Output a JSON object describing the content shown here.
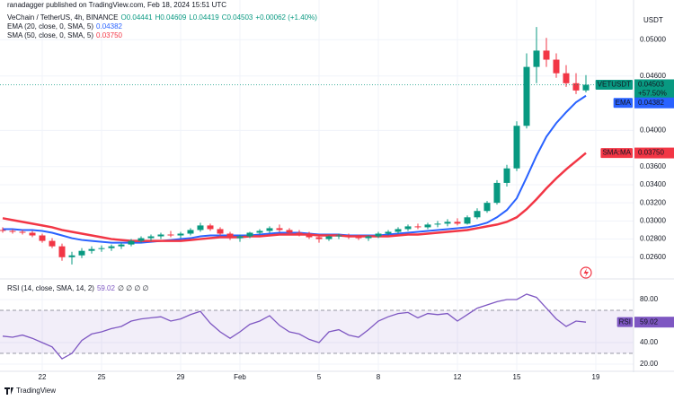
{
  "chart_data": {
    "type": "candlestick",
    "published": "ranadagger published on TradingView.com, Feb 18, 2024 15:51 UTC",
    "title": "VeChain / TetherUS, 4h, BINANCE",
    "ohlc_legend": [
      "O0.04441",
      "H0.04609",
      "L0.04419",
      "C0.04503",
      "+0.00062 (+1.40%)"
    ],
    "currency": "USDT",
    "brand": "TradingView",
    "up_color": "#089981",
    "down_color": "#f23645",
    "grid": true,
    "categories": [
      null,
      null,
      null,
      null,
      "22",
      null,
      null,
      null,
      null,
      null,
      "25",
      null,
      null,
      null,
      null,
      null,
      null,
      null,
      "29",
      null,
      null,
      null,
      null,
      null,
      "Feb",
      null,
      null,
      null,
      null,
      null,
      null,
      null,
      "5",
      null,
      null,
      null,
      null,
      null,
      "8",
      null,
      null,
      null,
      null,
      null,
      null,
      null,
      "12",
      null,
      null,
      null,
      null,
      null,
      "15",
      null,
      null,
      null,
      null,
      null,
      null,
      null,
      "19",
      null
    ],
    "open": [
      0.029,
      0.0289,
      0.0288,
      0.0287,
      0.0284,
      0.0278,
      0.0272,
      0.026,
      0.0262,
      0.0267,
      0.0269,
      0.027,
      0.0272,
      0.0274,
      0.0278,
      0.0281,
      0.0283,
      0.0285,
      0.0284,
      0.0286,
      0.029,
      0.0295,
      0.0291,
      0.0286,
      0.0281,
      0.0283,
      0.0287,
      0.0289,
      0.0292,
      0.029,
      0.0287,
      0.0285,
      0.0282,
      0.028,
      0.0283,
      0.0284,
      0.0282,
      0.0281,
      0.0283,
      0.0286,
      0.0288,
      0.0291,
      0.0294,
      0.0293,
      0.0296,
      0.0297,
      0.0299,
      0.0297,
      0.0304,
      0.0311,
      0.032,
      0.0342,
      0.0358,
      0.0405,
      0.047,
      0.0488,
      0.0478,
      0.0463,
      0.0452,
      0.04441,
      null,
      null
    ],
    "high": [
      0.0293,
      0.0291,
      0.029,
      0.0289,
      0.0286,
      0.0281,
      0.0275,
      0.0266,
      0.027,
      0.0272,
      0.0273,
      0.0274,
      0.0276,
      0.028,
      0.0283,
      0.0285,
      0.0287,
      0.0289,
      0.0288,
      0.0292,
      0.0298,
      0.0297,
      0.0293,
      0.0288,
      0.0285,
      0.0288,
      0.0291,
      0.0294,
      0.0296,
      0.0292,
      0.029,
      0.0288,
      0.0285,
      0.0284,
      0.0286,
      0.0286,
      0.0285,
      0.0284,
      0.0288,
      0.029,
      0.0293,
      0.0296,
      0.0297,
      0.0298,
      0.03,
      0.0302,
      0.0303,
      0.0306,
      0.0314,
      0.0322,
      0.0345,
      0.0362,
      0.041,
      0.0485,
      0.0514,
      0.0502,
      0.0485,
      0.0472,
      0.0463,
      0.04609,
      null,
      null
    ],
    "low": [
      0.0287,
      0.0286,
      0.0285,
      0.0282,
      0.0276,
      0.027,
      0.0256,
      0.0252,
      0.0259,
      0.0264,
      0.0266,
      0.0267,
      0.0269,
      0.0272,
      0.0276,
      0.0278,
      0.028,
      0.0282,
      0.0281,
      0.0284,
      0.0288,
      0.0289,
      0.0284,
      0.0279,
      0.0277,
      0.0281,
      0.0285,
      0.0287,
      0.0288,
      0.0285,
      0.0283,
      0.028,
      0.0276,
      0.0278,
      0.028,
      0.028,
      0.0279,
      0.0278,
      0.0281,
      0.0284,
      0.0286,
      0.0289,
      0.0291,
      0.0291,
      0.0293,
      0.0294,
      0.0295,
      0.0296,
      0.0302,
      0.0309,
      0.0318,
      0.0338,
      0.0355,
      0.0402,
      0.0452,
      0.047,
      0.0458,
      0.0448,
      0.044,
      0.04419,
      null,
      null
    ],
    "close": [
      0.0289,
      0.0288,
      0.0287,
      0.0284,
      0.0278,
      0.0272,
      0.026,
      0.0262,
      0.0267,
      0.0269,
      0.027,
      0.0272,
      0.0274,
      0.0278,
      0.0281,
      0.0283,
      0.0285,
      0.0284,
      0.0286,
      0.029,
      0.0295,
      0.0291,
      0.0286,
      0.0281,
      0.0283,
      0.0287,
      0.0289,
      0.0292,
      0.029,
      0.0287,
      0.0285,
      0.0282,
      0.028,
      0.0283,
      0.0284,
      0.0282,
      0.0281,
      0.0283,
      0.0286,
      0.0288,
      0.0291,
      0.0294,
      0.0293,
      0.0296,
      0.0297,
      0.0299,
      0.0297,
      0.0304,
      0.0311,
      0.032,
      0.0342,
      0.0358,
      0.0405,
      0.047,
      0.0488,
      0.0478,
      0.0463,
      0.0452,
      0.0444,
      0.04503,
      null,
      null
    ],
    "ylim": [
      0.0237,
      0.0529
    ],
    "yticks": [
      {
        "value": 0.05,
        "label": "0.05000"
      },
      {
        "value": 0.046,
        "label": "0.04600"
      },
      {
        "value": 0.04,
        "label": "0.04000"
      },
      {
        "value": 0.036,
        "label": "0.03600"
      },
      {
        "value": 0.034,
        "label": "0.03400"
      },
      {
        "value": 0.032,
        "label": "0.03200"
      },
      {
        "value": 0.03,
        "label": "0.03000"
      },
      {
        "value": 0.028,
        "label": "0.02800"
      },
      {
        "value": 0.026,
        "label": "0.02600"
      }
    ],
    "symbol": "VETUSDT",
    "last_price": {
      "value": 0.04503,
      "label": "0.04503"
    },
    "last_change": "+57.50%",
    "countdown": "08:09",
    "overlays": [
      {
        "name": "EMA (20, close, 0, SMA, 5)",
        "tag": "EMA",
        "color": "#2962ff",
        "last": {
          "value": 0.04382,
          "label": "0.04382"
        },
        "values": [
          0.0291,
          0.0291,
          0.029,
          0.029,
          0.0289,
          0.0287,
          0.0284,
          0.0281,
          0.0279,
          0.0278,
          0.0277,
          0.0276,
          0.0276,
          0.0276,
          0.0276,
          0.0277,
          0.0278,
          0.0279,
          0.028,
          0.0281,
          0.0283,
          0.0284,
          0.0284,
          0.0284,
          0.0284,
          0.0284,
          0.0285,
          0.0286,
          0.0287,
          0.0287,
          0.0287,
          0.0286,
          0.0285,
          0.0285,
          0.0285,
          0.0284,
          0.0284,
          0.0284,
          0.0284,
          0.0285,
          0.0286,
          0.0287,
          0.0288,
          0.0289,
          0.029,
          0.0291,
          0.0292,
          0.0293,
          0.0295,
          0.0298,
          0.0304,
          0.0312,
          0.0325,
          0.0348,
          0.0372,
          0.0393,
          0.0408,
          0.042,
          0.0431,
          0.04382,
          null,
          null
        ]
      },
      {
        "name": "SMA (50, close, 0, SMA, 5)",
        "tag": "SMA:MA",
        "color": "#f23645",
        "last": {
          "value": 0.0375,
          "label": "0.03750"
        },
        "values": [
          0.0303,
          0.0301,
          0.0299,
          0.0297,
          0.0295,
          0.0293,
          0.029,
          0.0288,
          0.0286,
          0.0284,
          0.0282,
          0.028,
          0.0279,
          0.0278,
          0.0278,
          0.0278,
          0.0278,
          0.0278,
          0.0278,
          0.0279,
          0.028,
          0.0281,
          0.0282,
          0.0282,
          0.0282,
          0.0283,
          0.0283,
          0.0284,
          0.0285,
          0.0285,
          0.0285,
          0.0285,
          0.0284,
          0.0284,
          0.0284,
          0.0283,
          0.0283,
          0.0283,
          0.0283,
          0.0283,
          0.0284,
          0.0285,
          0.0285,
          0.0286,
          0.0287,
          0.0288,
          0.0289,
          0.029,
          0.0292,
          0.0294,
          0.0296,
          0.0299,
          0.0304,
          0.0313,
          0.0324,
          0.0336,
          0.0347,
          0.0357,
          0.0366,
          0.0375,
          null,
          null
        ]
      }
    ],
    "rsi": {
      "name": "RSI (14, close, SMA, 14, 2)",
      "tag": "RSI",
      "color": "#7e57c2",
      "na": "∅ ∅ ∅ ∅",
      "last": {
        "value": 59.02,
        "label": "59.02"
      },
      "ylim": [
        14.2,
        98.3
      ],
      "band": [
        70,
        30
      ],
      "yticks": [
        {
          "value": 80,
          "label": "80.00"
        },
        {
          "value": 40,
          "label": "40.00"
        },
        {
          "value": 20,
          "label": "20.00"
        }
      ],
      "values": [
        46,
        45,
        47,
        44,
        40,
        36,
        25,
        30,
        42,
        48,
        50,
        53,
        55,
        60,
        62,
        63,
        64,
        60,
        62,
        66,
        69,
        58,
        50,
        44,
        50,
        57,
        60,
        65,
        56,
        50,
        48,
        43,
        40,
        50,
        52,
        47,
        45,
        52,
        60,
        64,
        67,
        68,
        63,
        67,
        66,
        67,
        60,
        66,
        72,
        75,
        78,
        80,
        80,
        85,
        82,
        72,
        62,
        55,
        60,
        59.02,
        null,
        null
      ]
    }
  }
}
